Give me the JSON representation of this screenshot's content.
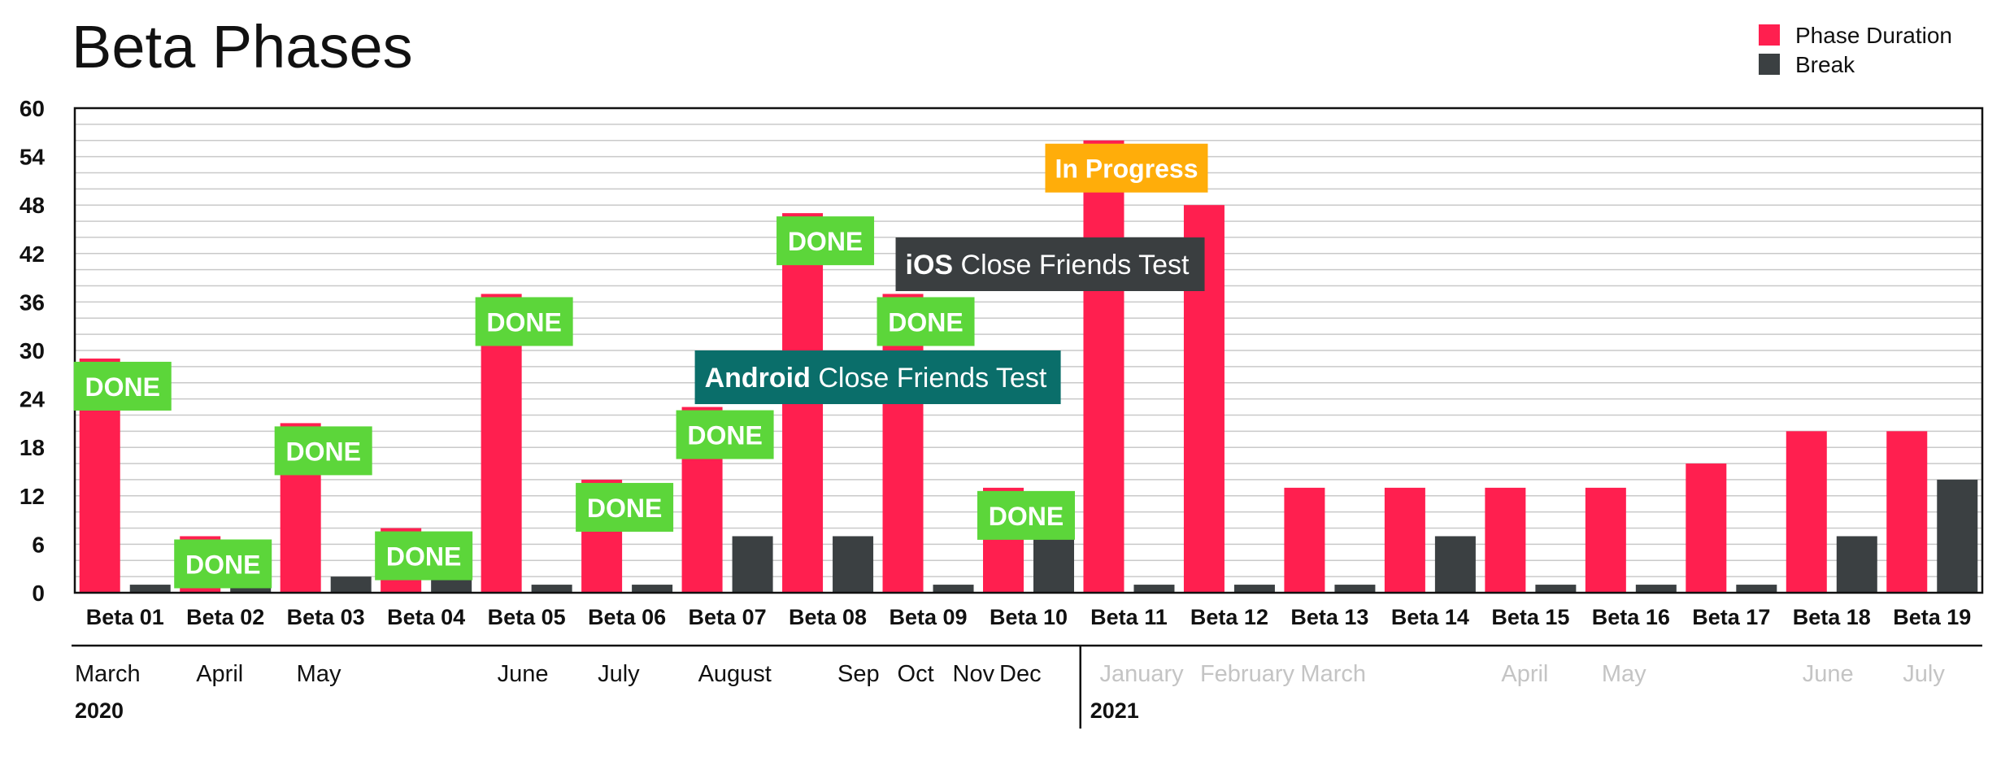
{
  "chart_data": {
    "type": "bar",
    "title": "Beta Phases",
    "ylim": [
      0,
      60
    ],
    "yticks": [
      0,
      6,
      12,
      18,
      24,
      30,
      36,
      42,
      48,
      54,
      60
    ],
    "grid": true,
    "legend_position": "top-right",
    "categories": [
      "Beta 01",
      "Beta 02",
      "Beta 03",
      "Beta 04",
      "Beta 05",
      "Beta 06",
      "Beta 07",
      "Beta 08",
      "Beta 09",
      "Beta 10",
      "Beta 11",
      "Beta 12",
      "Beta 13",
      "Beta 14",
      "Beta 15",
      "Beta 16",
      "Beta 17",
      "Beta 18",
      "Beta 19"
    ],
    "series": [
      {
        "name": "Phase Duration",
        "color": "#ff1f4f",
        "values": [
          29,
          7,
          21,
          8,
          37,
          14,
          23,
          47,
          37,
          13,
          56,
          48,
          13,
          13,
          13,
          13,
          16,
          20,
          20
        ]
      },
      {
        "name": "Break",
        "color": "#3b4042",
        "values": [
          1,
          2,
          2,
          5,
          1,
          1,
          7,
          7,
          1,
          7,
          1,
          1,
          1,
          7,
          1,
          1,
          1,
          7,
          14
        ]
      }
    ],
    "status_labels": [
      {
        "category": "Beta 01",
        "text": "DONE"
      },
      {
        "category": "Beta 02",
        "text": "DONE"
      },
      {
        "category": "Beta 03",
        "text": "DONE"
      },
      {
        "category": "Beta 04",
        "text": "DONE"
      },
      {
        "category": "Beta 05",
        "text": "DONE"
      },
      {
        "category": "Beta 06",
        "text": "DONE"
      },
      {
        "category": "Beta 07",
        "text": "DONE"
      },
      {
        "category": "Beta 08",
        "text": "DONE"
      },
      {
        "category": "Beta 09",
        "text": "DONE"
      },
      {
        "category": "Beta 10",
        "text": "DONE"
      },
      {
        "category": "Beta 11",
        "text": "In Progress"
      }
    ],
    "status_colors": {
      "DONE": "#5cd63a",
      "In Progress": "#ffad0a"
    },
    "annotations": [
      {
        "bold": "Android",
        "text": " Close Friends Test",
        "near_category": "Beta 07",
        "color": "#0a6e6a"
      },
      {
        "bold": "iOS",
        "text": " Close Friends Test",
        "near_category": "Beta 09",
        "color": "#3a3e40"
      }
    ],
    "timeline": {
      "months": [
        {
          "label": "March",
          "category": "Beta 01",
          "faded": false
        },
        {
          "label": "April",
          "category": "Beta 02",
          "faded": false
        },
        {
          "label": "May",
          "category": "Beta 03",
          "faded": false
        },
        {
          "label": "June",
          "category": "Beta 05",
          "faded": false
        },
        {
          "label": "July",
          "category": "Beta 06",
          "faded": false
        },
        {
          "label": "August",
          "category": "Beta 07",
          "faded": false
        },
        {
          "label": "Sep",
          "category": "Beta 08",
          "faded": false
        },
        {
          "label": "Oct",
          "category": "Beta 09",
          "faded": false
        },
        {
          "label": "Nov",
          "category": "Beta 09",
          "faded": false
        },
        {
          "label": "Dec",
          "category": "Beta 10",
          "faded": false
        },
        {
          "label": "January",
          "category": "Beta 11",
          "faded": true
        },
        {
          "label": "February",
          "category": "Beta 12",
          "faded": true
        },
        {
          "label": "March",
          "category": "Beta 13",
          "faded": true
        },
        {
          "label": "April",
          "category": "Beta 15",
          "faded": true
        },
        {
          "label": "May",
          "category": "Beta 16",
          "faded": true
        },
        {
          "label": "June",
          "category": "Beta 18",
          "faded": true
        },
        {
          "label": "July",
          "category": "Beta 19",
          "faded": true
        }
      ],
      "years": [
        {
          "label": "2020",
          "category": "Beta 01"
        },
        {
          "label": "2021",
          "category": "Beta 11"
        }
      ]
    }
  }
}
